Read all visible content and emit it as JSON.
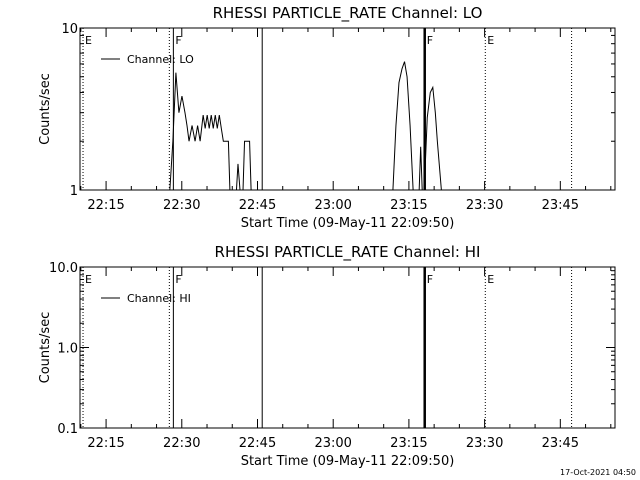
{
  "chart_data": [
    {
      "type": "line",
      "title": "RHESSI PARTICLE_RATE Channel: LO",
      "xlabel": "Start Time (09-May-11 22:09:50)",
      "ylabel": "Counts/sec",
      "x_unit": "minutes after 22:09:50",
      "xlim": [
        0,
        106
      ],
      "ylim": [
        1,
        10
      ],
      "yscale": "log",
      "grid": false,
      "legend_position": "upper-left",
      "y_ticks": [
        "1",
        "10"
      ],
      "x_ticks": [
        "22:15",
        "22:30",
        "22:45",
        "23:00",
        "23:15",
        "23:30",
        "23:45"
      ],
      "series": [
        {
          "name": "Channel: LO",
          "points": [
            [
              0,
              1
            ],
            [
              17.8,
              1
            ],
            [
              18.4,
              2.0
            ],
            [
              19.0,
              5.3
            ],
            [
              19.6,
              3.0
            ],
            [
              20.2,
              3.8
            ],
            [
              20.8,
              3.0
            ],
            [
              21.2,
              2.5
            ],
            [
              21.6,
              2.0
            ],
            [
              22.2,
              2.5
            ],
            [
              22.8,
              2.0
            ],
            [
              23.3,
              2.5
            ],
            [
              23.8,
              2.0
            ],
            [
              24.4,
              2.9
            ],
            [
              24.8,
              2.4
            ],
            [
              25.2,
              2.9
            ],
            [
              25.6,
              2.4
            ],
            [
              26.0,
              2.9
            ],
            [
              26.4,
              2.4
            ],
            [
              26.8,
              2.9
            ],
            [
              27.2,
              2.4
            ],
            [
              27.6,
              2.9
            ],
            [
              28.0,
              2.4
            ],
            [
              28.4,
              2.0
            ],
            [
              29.4,
              2.0
            ],
            [
              29.7,
              1
            ],
            [
              31.0,
              1
            ],
            [
              31.3,
              1.45
            ],
            [
              31.7,
              1
            ],
            [
              32.3,
              1
            ],
            [
              32.6,
              2.0
            ],
            [
              33.6,
              2.0
            ],
            [
              33.9,
              1
            ],
            [
              62.0,
              1
            ],
            [
              62.6,
              2.5
            ],
            [
              63.2,
              4.6
            ],
            [
              63.8,
              5.6
            ],
            [
              64.3,
              6.2
            ],
            [
              64.8,
              5.0
            ],
            [
              65.4,
              2.5
            ],
            [
              66.0,
              1
            ],
            [
              67.2,
              1
            ],
            [
              67.5,
              1.85
            ],
            [
              67.8,
              1
            ],
            [
              68.2,
              1
            ],
            [
              68.8,
              2.8
            ],
            [
              69.4,
              4.0
            ],
            [
              69.9,
              4.3
            ],
            [
              70.4,
              3.0
            ],
            [
              70.8,
              2.0
            ],
            [
              71.6,
              1
            ],
            [
              106,
              1
            ]
          ]
        }
      ],
      "markers": [
        {
          "type": "E",
          "x": 0.6,
          "style": "dotted"
        },
        {
          "type": "",
          "x": 17.7,
          "style": "dotted"
        },
        {
          "type": "F",
          "x": 18.5,
          "style": "solid"
        },
        {
          "type": "",
          "x": 36.1,
          "style": "solid"
        },
        {
          "type": "F",
          "x": 68.3,
          "style": "thick"
        },
        {
          "type": "E",
          "x": 80.3,
          "style": "dotted"
        },
        {
          "type": "",
          "x": 97.4,
          "style": "dotted"
        }
      ]
    },
    {
      "type": "line",
      "title": "RHESSI PARTICLE_RATE Channel: HI",
      "xlabel": "Start Time (09-May-11 22:09:50)",
      "ylabel": "Counts/sec",
      "x_unit": "minutes after 22:09:50",
      "xlim": [
        0,
        106
      ],
      "ylim": [
        0.1,
        10
      ],
      "yscale": "log",
      "grid": false,
      "legend_position": "upper-left",
      "y_ticks": [
        "0.1",
        "1.0",
        "10.0"
      ],
      "x_ticks": [
        "22:15",
        "22:30",
        "22:45",
        "23:00",
        "23:15",
        "23:30",
        "23:45"
      ],
      "series": [
        {
          "name": "Channel: HI",
          "points": []
        }
      ],
      "markers": [
        {
          "type": "E",
          "x": 0.6,
          "style": "dotted"
        },
        {
          "type": "",
          "x": 17.7,
          "style": "dotted"
        },
        {
          "type": "F",
          "x": 18.5,
          "style": "solid"
        },
        {
          "type": "",
          "x": 36.1,
          "style": "solid"
        },
        {
          "type": "F",
          "x": 68.3,
          "style": "thick"
        },
        {
          "type": "E",
          "x": 80.3,
          "style": "dotted"
        },
        {
          "type": "",
          "x": 97.4,
          "style": "dotted"
        }
      ]
    }
  ],
  "footer": {
    "date": "17-Oct-2021 04:50"
  }
}
